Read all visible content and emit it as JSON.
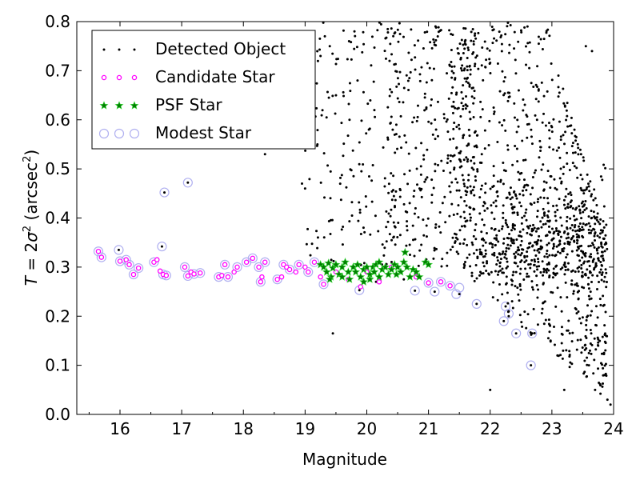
{
  "chart_data": {
    "type": "scatter",
    "xlabel": "Magnitude",
    "ylabel_parts": {
      "var": "T",
      "eq": " = 2",
      "sigma": "σ",
      "sq": "2",
      "unit_open": " (arcsec",
      "unit_sq": "2",
      "unit_close": ")"
    },
    "xlim": [
      15.3,
      24
    ],
    "ylim": [
      0.0,
      0.8
    ],
    "xticks": [
      "16",
      "17",
      "18",
      "19",
      "20",
      "21",
      "22",
      "23",
      "24"
    ],
    "yticks": [
      "0.0",
      "0.1",
      "0.2",
      "0.3",
      "0.4",
      "0.5",
      "0.6",
      "0.7",
      "0.8"
    ],
    "legend_position": "top-left",
    "series": [
      {
        "name": "Detected Object",
        "marker": "dot",
        "color": "#000000",
        "approx_count": 1700,
        "points": [
          [
            15.98,
            0.335
          ],
          [
            16.68,
            0.342
          ],
          [
            16.72,
            0.452
          ],
          [
            17.1,
            0.472
          ],
          [
            19.88,
            0.253
          ],
          [
            20.78,
            0.252
          ],
          [
            21.1,
            0.25
          ],
          [
            21.5,
            0.245
          ],
          [
            21.78,
            0.225
          ],
          [
            22.22,
            0.19
          ],
          [
            22.3,
            0.21
          ],
          [
            22.42,
            0.165
          ],
          [
            22.66,
            0.1
          ],
          [
            22.68,
            0.165
          ],
          [
            22.3,
            0.2
          ],
          [
            22.25,
            0.22
          ],
          [
            21.0,
            0.265
          ],
          [
            20.6,
            0.275
          ],
          [
            20.15,
            0.27
          ],
          [
            19.1,
            0.56
          ],
          [
            19.2,
            0.55
          ],
          [
            18.95,
            0.47
          ],
          [
            19.0,
            0.46
          ],
          [
            18.35,
            0.53
          ],
          [
            19.25,
            0.73
          ],
          [
            19.32,
            0.77
          ],
          [
            19.5,
            0.65
          ],
          [
            19.4,
            0.75
          ],
          [
            19.8,
            0.78
          ],
          [
            19.85,
            0.68
          ],
          [
            19.72,
            0.6
          ],
          [
            19.45,
            0.165
          ],
          [
            23.65,
            0.74
          ],
          [
            23.8,
            0.35
          ],
          [
            23.9,
            0.03
          ],
          [
            23.95,
            0.02
          ],
          [
            23.7,
            0.05
          ],
          [
            23.2,
            0.05
          ],
          [
            22.0,
            0.05
          ],
          [
            23.55,
            0.75
          ],
          [
            23.75,
            0.14
          ],
          [
            23.6,
            0.1
          ],
          [
            23.85,
            0.08
          ]
        ]
      },
      {
        "name": "Candidate Star",
        "marker": "circle",
        "color": "#ff00ff",
        "points": [
          [
            15.65,
            0.332
          ],
          [
            15.7,
            0.32
          ],
          [
            16.0,
            0.312
          ],
          [
            16.1,
            0.315
          ],
          [
            16.15,
            0.305
          ],
          [
            16.22,
            0.285
          ],
          [
            16.3,
            0.298
          ],
          [
            16.55,
            0.31
          ],
          [
            16.6,
            0.315
          ],
          [
            16.65,
            0.292
          ],
          [
            16.7,
            0.285
          ],
          [
            16.75,
            0.283
          ],
          [
            17.05,
            0.3
          ],
          [
            17.1,
            0.282
          ],
          [
            17.15,
            0.29
          ],
          [
            17.2,
            0.286
          ],
          [
            17.3,
            0.288
          ],
          [
            17.6,
            0.28
          ],
          [
            17.65,
            0.283
          ],
          [
            17.7,
            0.305
          ],
          [
            17.75,
            0.28
          ],
          [
            17.85,
            0.29
          ],
          [
            17.9,
            0.3
          ],
          [
            18.05,
            0.31
          ],
          [
            18.15,
            0.318
          ],
          [
            18.25,
            0.3
          ],
          [
            18.28,
            0.27
          ],
          [
            18.3,
            0.28
          ],
          [
            18.35,
            0.31
          ],
          [
            18.55,
            0.275
          ],
          [
            18.62,
            0.28
          ],
          [
            18.65,
            0.305
          ],
          [
            18.7,
            0.3
          ],
          [
            18.75,
            0.295
          ],
          [
            18.85,
            0.29
          ],
          [
            18.9,
            0.305
          ],
          [
            19.0,
            0.3
          ],
          [
            19.05,
            0.29
          ],
          [
            19.15,
            0.31
          ],
          [
            19.25,
            0.28
          ],
          [
            19.3,
            0.265
          ],
          [
            19.5,
            0.29
          ],
          [
            19.7,
            0.275
          ],
          [
            19.9,
            0.26
          ],
          [
            20.0,
            0.29
          ],
          [
            20.2,
            0.27
          ],
          [
            20.4,
            0.3
          ],
          [
            20.8,
            0.28
          ],
          [
            21.0,
            0.268
          ],
          [
            21.2,
            0.27
          ],
          [
            21.35,
            0.262
          ]
        ]
      },
      {
        "name": "PSF Star",
        "marker": "star",
        "color": "#008000",
        "points": [
          [
            19.25,
            0.305
          ],
          [
            19.3,
            0.3
          ],
          [
            19.35,
            0.29
          ],
          [
            19.38,
            0.308
          ],
          [
            19.42,
            0.28
          ],
          [
            19.45,
            0.298
          ],
          [
            19.5,
            0.305
          ],
          [
            19.55,
            0.285
          ],
          [
            19.6,
            0.3
          ],
          [
            19.65,
            0.31
          ],
          [
            19.7,
            0.29
          ],
          [
            19.72,
            0.275
          ],
          [
            19.78,
            0.3
          ],
          [
            19.82,
            0.29
          ],
          [
            19.85,
            0.305
          ],
          [
            19.9,
            0.28
          ],
          [
            19.95,
            0.295
          ],
          [
            20.0,
            0.3
          ],
          [
            20.05,
            0.285
          ],
          [
            20.1,
            0.3
          ],
          [
            20.12,
            0.29
          ],
          [
            20.15,
            0.305
          ],
          [
            20.2,
            0.31
          ],
          [
            20.25,
            0.295
          ],
          [
            20.3,
            0.3
          ],
          [
            20.35,
            0.285
          ],
          [
            20.4,
            0.295
          ],
          [
            20.45,
            0.305
          ],
          [
            20.5,
            0.3
          ],
          [
            20.55,
            0.29
          ],
          [
            20.6,
            0.31
          ],
          [
            20.62,
            0.33
          ],
          [
            20.65,
            0.3
          ],
          [
            20.7,
            0.28
          ],
          [
            20.75,
            0.295
          ],
          [
            20.8,
            0.29
          ],
          [
            20.85,
            0.28
          ],
          [
            20.95,
            0.31
          ],
          [
            21.0,
            0.305
          ],
          [
            19.95,
            0.27
          ],
          [
            20.05,
            0.275
          ],
          [
            19.6,
            0.28
          ],
          [
            19.4,
            0.275
          ],
          [
            20.48,
            0.285
          ],
          [
            20.2,
            0.28
          ]
        ]
      },
      {
        "name": "Modest Star",
        "marker": "open-circle",
        "color": "#b0b0f0",
        "points": [
          [
            15.65,
            0.332
          ],
          [
            15.7,
            0.32
          ],
          [
            15.98,
            0.335
          ],
          [
            16.0,
            0.312
          ],
          [
            16.1,
            0.315
          ],
          [
            16.15,
            0.305
          ],
          [
            16.22,
            0.285
          ],
          [
            16.3,
            0.298
          ],
          [
            16.55,
            0.31
          ],
          [
            16.68,
            0.342
          ],
          [
            16.72,
            0.452
          ],
          [
            16.7,
            0.285
          ],
          [
            16.75,
            0.283
          ],
          [
            17.05,
            0.3
          ],
          [
            17.1,
            0.472
          ],
          [
            17.1,
            0.282
          ],
          [
            17.2,
            0.286
          ],
          [
            17.3,
            0.288
          ],
          [
            17.6,
            0.28
          ],
          [
            17.7,
            0.305
          ],
          [
            17.75,
            0.28
          ],
          [
            17.9,
            0.3
          ],
          [
            18.05,
            0.31
          ],
          [
            18.15,
            0.318
          ],
          [
            18.25,
            0.3
          ],
          [
            18.28,
            0.27
          ],
          [
            18.35,
            0.31
          ],
          [
            18.55,
            0.275
          ],
          [
            18.65,
            0.305
          ],
          [
            18.75,
            0.295
          ],
          [
            18.9,
            0.305
          ],
          [
            19.05,
            0.29
          ],
          [
            19.15,
            0.31
          ],
          [
            19.3,
            0.265
          ],
          [
            19.88,
            0.253
          ],
          [
            20.78,
            0.252
          ],
          [
            21.1,
            0.25
          ],
          [
            21.35,
            0.262
          ],
          [
            21.45,
            0.245
          ],
          [
            21.5,
            0.258
          ],
          [
            21.78,
            0.225
          ],
          [
            22.22,
            0.19
          ],
          [
            22.25,
            0.22
          ],
          [
            22.3,
            0.205
          ],
          [
            22.42,
            0.165
          ],
          [
            22.66,
            0.1
          ],
          [
            22.68,
            0.165
          ],
          [
            21.2,
            0.27
          ],
          [
            21.0,
            0.268
          ]
        ]
      }
    ]
  }
}
